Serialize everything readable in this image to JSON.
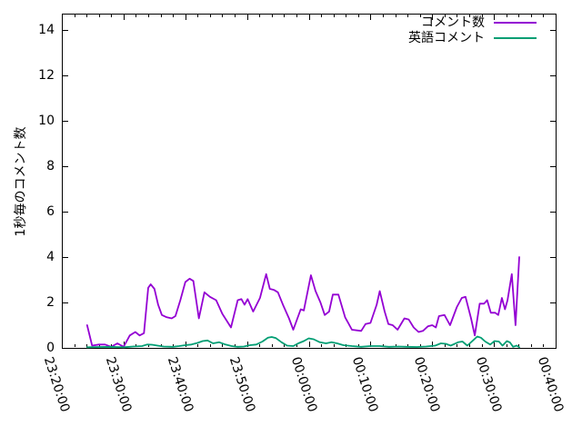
{
  "chart_data": {
    "type": "line",
    "ylabel": "1秒毎のコメント数",
    "xlabel": "",
    "grid": false,
    "background": "#ffffff",
    "axis_color": "#000000",
    "ylim": [
      0,
      14.72
    ],
    "y_ticks": [
      0,
      2,
      4,
      6,
      8,
      10,
      12,
      14
    ],
    "y_tick_labels": [
      "0",
      "2",
      "4",
      "6",
      "8",
      "10",
      "12",
      "14"
    ],
    "x_range_minutes": [
      0,
      80
    ],
    "x_tick_minutes": [
      0,
      10,
      20,
      30,
      40,
      50,
      60,
      70,
      80
    ],
    "x_tick_labels": [
      "23:20:00",
      "23:30:00",
      "23:40:00",
      "23:50:00",
      "00:00:00",
      "00:10:00",
      "00:20:00",
      "00:30:00",
      "00:40:00"
    ],
    "x_minor_step_minutes": 2,
    "legend": {
      "position": "top-right-inside",
      "entries": [
        {
          "label": "コメント数",
          "color": "#9400d3"
        },
        {
          "label": "英語コメント",
          "color": "#009e73"
        }
      ]
    },
    "series": [
      {
        "name": "コメント数",
        "color": "#9400d3",
        "points_minutes_value": [
          [
            4.1,
            1.0
          ],
          [
            4.9,
            0.1
          ],
          [
            6,
            0.15
          ],
          [
            7,
            0.15
          ],
          [
            8,
            0.05
          ],
          [
            9,
            0.2
          ],
          [
            10,
            0.05
          ],
          [
            11,
            0.55
          ],
          [
            11.9,
            0.7
          ],
          [
            12.6,
            0.55
          ],
          [
            13.3,
            0.65
          ],
          [
            14,
            2.65
          ],
          [
            14.4,
            2.8
          ],
          [
            15,
            2.6
          ],
          [
            15.6,
            1.9
          ],
          [
            16.2,
            1.45
          ],
          [
            17,
            1.35
          ],
          [
            17.8,
            1.3
          ],
          [
            18.4,
            1.4
          ],
          [
            19.2,
            2.1
          ],
          [
            20,
            2.9
          ],
          [
            20.7,
            3.05
          ],
          [
            21.3,
            2.95
          ],
          [
            22.2,
            1.3
          ],
          [
            23.1,
            2.45
          ],
          [
            24,
            2.25
          ],
          [
            25,
            2.1
          ],
          [
            26,
            1.5
          ],
          [
            27.4,
            0.9
          ],
          [
            28.5,
            2.1
          ],
          [
            29.1,
            2.15
          ],
          [
            29.6,
            1.9
          ],
          [
            30.1,
            2.15
          ],
          [
            31,
            1.6
          ],
          [
            32.1,
            2.2
          ],
          [
            33.1,
            3.25
          ],
          [
            33.7,
            2.6
          ],
          [
            34.4,
            2.55
          ],
          [
            35,
            2.45
          ],
          [
            35.9,
            1.85
          ],
          [
            36.8,
            1.3
          ],
          [
            37.5,
            0.8
          ],
          [
            38.7,
            1.7
          ],
          [
            39.2,
            1.65
          ],
          [
            40.35,
            3.2
          ],
          [
            41.1,
            2.5
          ],
          [
            41.9,
            2.0
          ],
          [
            42.6,
            1.45
          ],
          [
            43.3,
            1.6
          ],
          [
            43.9,
            2.35
          ],
          [
            44.8,
            2.35
          ],
          [
            45.9,
            1.35
          ],
          [
            47,
            0.8
          ],
          [
            48.5,
            0.75
          ],
          [
            49.2,
            1.05
          ],
          [
            50,
            1.1
          ],
          [
            51,
            1.9
          ],
          [
            51.5,
            2.5
          ],
          [
            52.3,
            1.6
          ],
          [
            52.9,
            1.05
          ],
          [
            53.6,
            1.0
          ],
          [
            54.4,
            0.8
          ],
          [
            55.5,
            1.3
          ],
          [
            56.2,
            1.25
          ],
          [
            57,
            0.9
          ],
          [
            57.8,
            0.7
          ],
          [
            58.5,
            0.75
          ],
          [
            59.3,
            0.95
          ],
          [
            60,
            1.0
          ],
          [
            60.6,
            0.9
          ],
          [
            61.1,
            1.4
          ],
          [
            62,
            1.45
          ],
          [
            62.9,
            1.0
          ],
          [
            64,
            1.8
          ],
          [
            64.8,
            2.2
          ],
          [
            65.4,
            2.25
          ],
          [
            66.3,
            1.3
          ],
          [
            66.9,
            0.55
          ],
          [
            67.7,
            1.95
          ],
          [
            68.4,
            1.95
          ],
          [
            68.9,
            2.1
          ],
          [
            69.5,
            1.55
          ],
          [
            70.2,
            1.55
          ],
          [
            70.7,
            1.45
          ],
          [
            71.3,
            2.2
          ],
          [
            71.8,
            1.7
          ],
          [
            72.2,
            2.1
          ],
          [
            72.9,
            3.25
          ],
          [
            73.5,
            1.0
          ],
          [
            74.1,
            4.0
          ]
        ]
      },
      {
        "name": "英語コメント",
        "color": "#009e73",
        "points_minutes_value": [
          [
            4.1,
            0.03
          ],
          [
            6,
            0.04
          ],
          [
            8,
            0.05
          ],
          [
            10,
            0.03
          ],
          [
            11.5,
            0.06
          ],
          [
            13,
            0.08
          ],
          [
            13.8,
            0.15
          ],
          [
            14.6,
            0.14
          ],
          [
            15.5,
            0.1
          ],
          [
            16.5,
            0.06
          ],
          [
            18,
            0.05
          ],
          [
            19,
            0.08
          ],
          [
            20,
            0.12
          ],
          [
            21,
            0.15
          ],
          [
            22,
            0.22
          ],
          [
            22.8,
            0.3
          ],
          [
            23.6,
            0.33
          ],
          [
            24.5,
            0.2
          ],
          [
            25.5,
            0.25
          ],
          [
            26.5,
            0.15
          ],
          [
            27.5,
            0.08
          ],
          [
            28.5,
            0.05
          ],
          [
            29.5,
            0.06
          ],
          [
            30.5,
            0.12
          ],
          [
            31.5,
            0.15
          ],
          [
            32.5,
            0.28
          ],
          [
            33.4,
            0.45
          ],
          [
            34,
            0.48
          ],
          [
            34.7,
            0.43
          ],
          [
            35.6,
            0.25
          ],
          [
            36.5,
            0.1
          ],
          [
            37.5,
            0.08
          ],
          [
            38.3,
            0.2
          ],
          [
            39.2,
            0.3
          ],
          [
            40,
            0.42
          ],
          [
            40.8,
            0.38
          ],
          [
            41.8,
            0.25
          ],
          [
            42.8,
            0.2
          ],
          [
            43.7,
            0.25
          ],
          [
            44.6,
            0.2
          ],
          [
            45.6,
            0.12
          ],
          [
            47,
            0.08
          ],
          [
            48.5,
            0.05
          ],
          [
            50,
            0.08
          ],
          [
            51.5,
            0.08
          ],
          [
            53,
            0.05
          ],
          [
            54.5,
            0.06
          ],
          [
            56,
            0.05
          ],
          [
            57.5,
            0.04
          ],
          [
            59,
            0.06
          ],
          [
            60.5,
            0.1
          ],
          [
            61.4,
            0.2
          ],
          [
            62.2,
            0.18
          ],
          [
            63,
            0.1
          ],
          [
            64.2,
            0.25
          ],
          [
            64.9,
            0.28
          ],
          [
            65.7,
            0.1
          ],
          [
            66.5,
            0.3
          ],
          [
            67.3,
            0.5
          ],
          [
            67.9,
            0.45
          ],
          [
            68.6,
            0.28
          ],
          [
            69.4,
            0.15
          ],
          [
            70.1,
            0.3
          ],
          [
            70.8,
            0.28
          ],
          [
            71.4,
            0.1
          ],
          [
            72.1,
            0.3
          ],
          [
            72.6,
            0.24
          ],
          [
            73.1,
            0.05
          ],
          [
            73.7,
            0.1
          ],
          [
            74.1,
            0.03
          ]
        ]
      }
    ]
  }
}
